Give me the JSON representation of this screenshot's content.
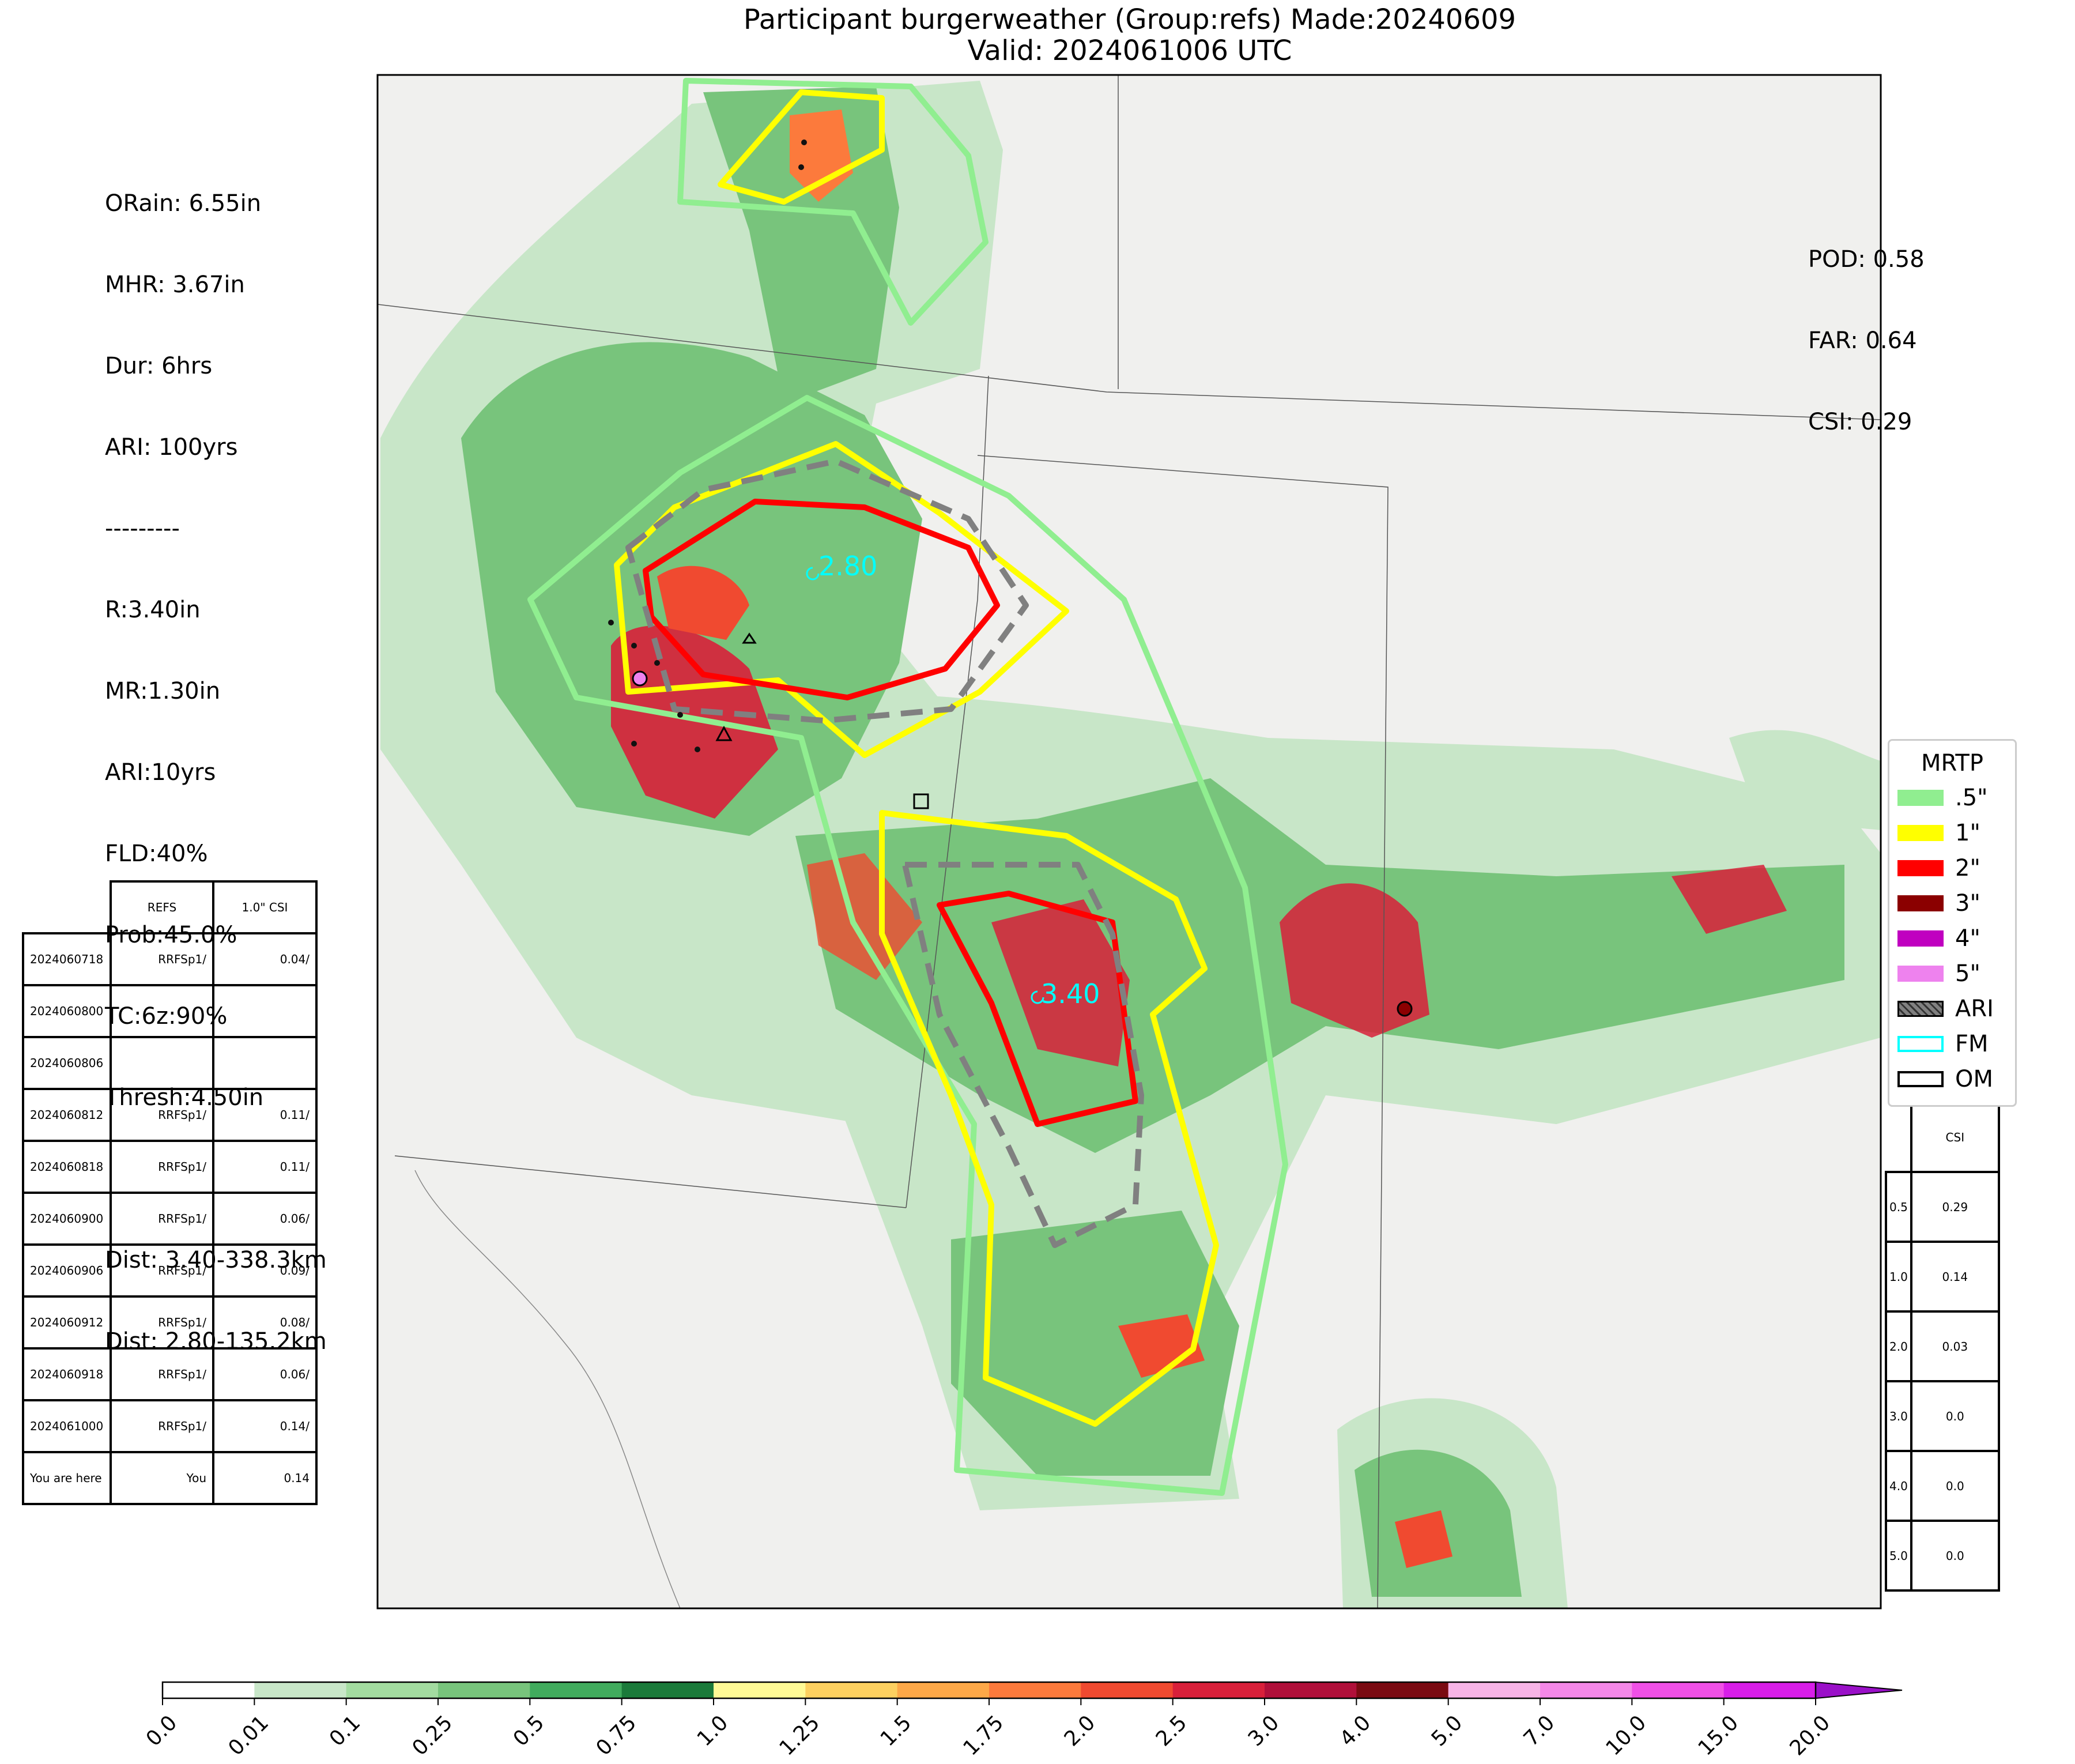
{
  "title": {
    "line1": "Participant burgerweather (Group:refs) Made:20240609",
    "line2": "Valid: 2024061006 UTC"
  },
  "left_stats": {
    "lines": [
      "ORain: 6.55in",
      "MHR: 3.67in",
      "Dur: 6hrs",
      "ARI: 100yrs",
      "---------",
      "R:3.40in",
      "MR:1.30in",
      "ARI:10yrs",
      "FLD:40%",
      "Prob:45.0%",
      "TC:6z:90%",
      "Thresh:4.50in",
      "",
      "Dist: 3.40-338.3km",
      "Dist: 2.80-135.2km"
    ]
  },
  "right_stats": {
    "pod": "POD: 0.58",
    "far": "FAR: 0.64",
    "csi": "CSI: 0.29"
  },
  "labels": {
    "label_340": "3.40",
    "label_280": "2.80"
  },
  "runs_table": {
    "headers": [
      "",
      "REFS",
      "1.0\" CSI"
    ],
    "rows": [
      [
        "2024060718",
        "RRFSp1/",
        "0.04/"
      ],
      [
        "2024060800",
        "",
        ""
      ],
      [
        "2024060806",
        "",
        ""
      ],
      [
        "2024060812",
        "RRFSp1/",
        "0.11/"
      ],
      [
        "2024060818",
        "RRFSp1/",
        "0.11/"
      ],
      [
        "2024060900",
        "RRFSp1/",
        "0.06/"
      ],
      [
        "2024060906",
        "RRFSp1/",
        "0.09/"
      ],
      [
        "2024060912",
        "RRFSp1/",
        "0.08/"
      ],
      [
        "2024060918",
        "RRFSp1/",
        "0.06/"
      ],
      [
        "2024061000",
        "RRFSp1/",
        "0.14/"
      ],
      [
        "You are here",
        "You",
        "0.14"
      ]
    ]
  },
  "csi_table": {
    "header": "CSI",
    "rows": [
      [
        "0.5",
        "0.29"
      ],
      [
        "1.0",
        "0.14"
      ],
      [
        "2.0",
        "0.03"
      ],
      [
        "3.0",
        "0.0"
      ],
      [
        "4.0",
        "0.0"
      ],
      [
        "5.0",
        "0.0"
      ]
    ]
  },
  "legend": {
    "title": "MRTP",
    "items": [
      {
        "label": ".5\"",
        "color": "#90ee90",
        "style": "fill"
      },
      {
        "label": "1\"",
        "color": "#ffff00",
        "style": "fill"
      },
      {
        "label": "2\"",
        "color": "#ff0000",
        "style": "fill"
      },
      {
        "label": "3\"",
        "color": "#8b0000",
        "style": "fill"
      },
      {
        "label": "4\"",
        "color": "#c000c0",
        "style": "fill"
      },
      {
        "label": "5\"",
        "color": "#ee82ee",
        "style": "fill"
      },
      {
        "label": "ARI",
        "color": "#808080",
        "style": "hatch"
      },
      {
        "label": "FM",
        "color": "#00ffff",
        "style": "outline"
      },
      {
        "label": "OM",
        "color": "#000000",
        "style": "outline"
      }
    ]
  },
  "colorbar": {
    "ticks": [
      "0.0",
      "0.01",
      "0.1",
      "0.25",
      "0.5",
      "0.75",
      "1.0",
      "1.25",
      "1.5",
      "1.75",
      "2.0",
      "2.5",
      "3.0",
      "4.0",
      "5.0",
      "7.0",
      "10.0",
      "15.0",
      "20.0"
    ],
    "colors": [
      "#ffffff",
      "#c8e6c8",
      "#a3dca0",
      "#78c47c",
      "#41ab5d",
      "#1b7a3a",
      "#fffa96",
      "#fdd060",
      "#fda848",
      "#fc7a3c",
      "#f04a30",
      "#d8203a",
      "#b0103a",
      "#7a0a12",
      "#f7b4e6",
      "#f488e8",
      "#f050e6",
      "#d81ee8",
      "#9a10c8"
    ]
  }
}
